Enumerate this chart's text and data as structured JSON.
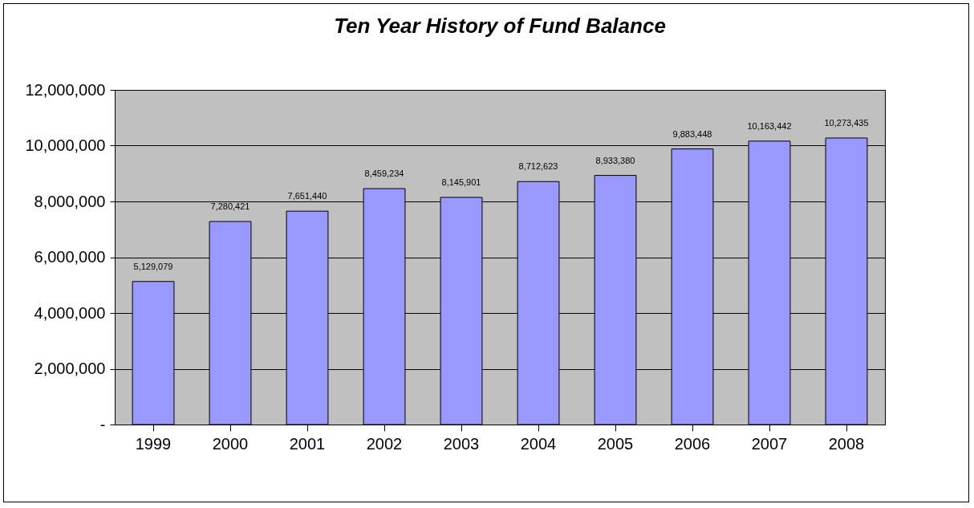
{
  "chart_data": {
    "type": "bar",
    "title": "Ten Year History of Fund Balance",
    "categories": [
      "1999",
      "2000",
      "2001",
      "2002",
      "2003",
      "2004",
      "2005",
      "2006",
      "2007",
      "2008"
    ],
    "values": [
      5129079,
      7280421,
      7651440,
      8459234,
      8145901,
      8712623,
      8933380,
      9883448,
      10163442,
      10273435
    ],
    "value_labels": [
      "5,129,079",
      "7,280,421",
      "7,651,440",
      "8,459,234",
      "8,145,901",
      "8,712,623",
      "8,933,380",
      "9,883,448",
      "10,163,442",
      "10,273,435"
    ],
    "color": "#9999ff",
    "ylim": [
      0,
      12000000
    ],
    "yticks": [
      {
        "value": 0,
        "label": "-"
      },
      {
        "value": 2000000,
        "label": "2,000,000"
      },
      {
        "value": 4000000,
        "label": "4,000,000"
      },
      {
        "value": 6000000,
        "label": "6,000,000"
      },
      {
        "value": 8000000,
        "label": "8,000,000"
      },
      {
        "value": 10000000,
        "label": "10,000,000"
      },
      {
        "value": 12000000,
        "label": "12,000,000"
      }
    ],
    "grid": "y"
  }
}
